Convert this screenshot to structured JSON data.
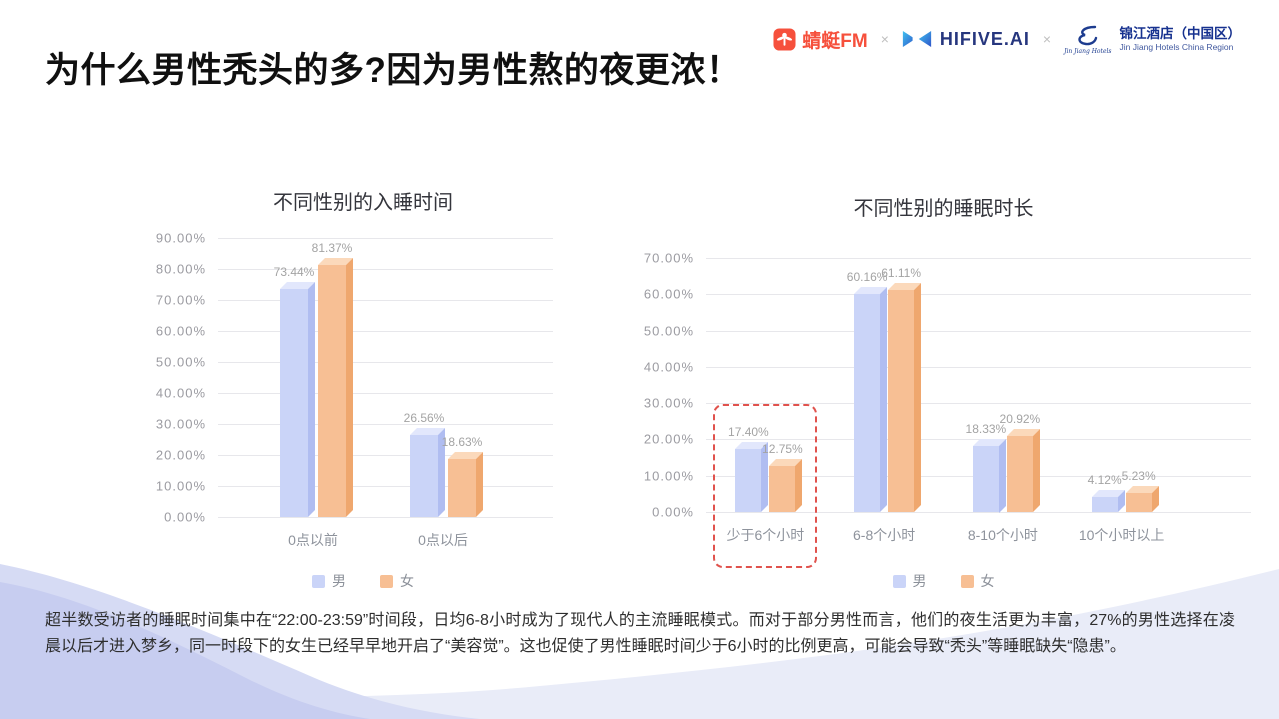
{
  "header": {
    "title": "为什么男性秃头的多?因为男性熬的夜更浓！"
  },
  "partners": {
    "qingting_label": "蜻蜓FM",
    "separator": "×",
    "hifive_label": "HIFIVE.AI",
    "jinjiang_icon_text": "Jin Jiang Hotels",
    "jinjiang_cn": "锦江酒店（中国区）",
    "jinjiang_en": "Jin Jiang Hotels China Region"
  },
  "colors": {
    "male_front": "#cad4f8",
    "male_top": "#e2e7fc",
    "male_side": "#b0bdf1",
    "female_front": "#f7bf94",
    "female_top": "#fbd9bb",
    "female_side": "#efa76e",
    "highlight_border": "#e0524d",
    "qingting_red": "#f6503c",
    "hifive_blue": "#26367e",
    "jinjiang_blue": "#16318f",
    "wave_light": "#e9ecf8",
    "wave_medium": "#d6dbf4",
    "wave_dark": "#c7cdf0"
  },
  "series_colors": [
    {
      "front": "#cad4f8",
      "top": "#e2e7fc",
      "side": "#b0bdf1"
    },
    {
      "front": "#f7bf94",
      "top": "#fbd9bb",
      "side": "#efa76e"
    }
  ],
  "chart_data": [
    {
      "type": "bar",
      "title": "不同性别的入睡时间",
      "categories": [
        "0点以前",
        "0点以后"
      ],
      "series": [
        {
          "name": "男",
          "values": [
            73.44,
            26.56
          ],
          "labels": [
            "73.44%",
            "26.56%"
          ]
        },
        {
          "name": "女",
          "values": [
            81.37,
            18.63
          ],
          "labels": [
            "81.37%",
            "18.63%"
          ]
        }
      ],
      "legend": [
        "男",
        "女"
      ],
      "ylim": [
        0,
        90
      ],
      "yticks": [
        "90.00%",
        "80.00%",
        "70.00%",
        "60.00%",
        "50.00%",
        "40.00%",
        "30.00%",
        "20.00%",
        "10.00%",
        "0.00%"
      ],
      "grid": "horizontal",
      "legend_position": "bottom"
    },
    {
      "type": "bar",
      "title": "不同性别的睡眠时长",
      "categories": [
        "少于6个小时",
        "6-8个小时",
        "8-10个小时",
        "10个小时以上"
      ],
      "series": [
        {
          "name": "男",
          "values": [
            17.4,
            60.16,
            18.33,
            4.12
          ],
          "labels": [
            "17.40%",
            "60.16%",
            "18.33%",
            "4.12%"
          ]
        },
        {
          "name": "女",
          "values": [
            12.75,
            61.11,
            20.92,
            5.23
          ],
          "labels": [
            "12.75%",
            "61.11%",
            "20.92%",
            "5.23%"
          ]
        }
      ],
      "legend": [
        "男",
        "女"
      ],
      "ylim": [
        0,
        70
      ],
      "yticks": [
        "70.00%",
        "60.00%",
        "50.00%",
        "40.00%",
        "30.00%",
        "20.00%",
        "10.00%",
        "0.00%"
      ],
      "grid": "horizontal",
      "legend_position": "bottom",
      "highlight_category": 0
    }
  ],
  "footer": {
    "text": "超半数受访者的睡眠时间集中在“22:00-23:59”时间段，日均6-8小时成为了现代人的主流睡眠模式。而对于部分男性而言，他们的夜生活更为丰富，27%的男性选择在凌晨以后才进入梦乡，同一时段下的女生已经早早地开启了“美容觉”。这也促使了男性睡眠时间少于6小时的比例更高，可能会导致“秃头”等睡眠缺失“隐患”。"
  }
}
